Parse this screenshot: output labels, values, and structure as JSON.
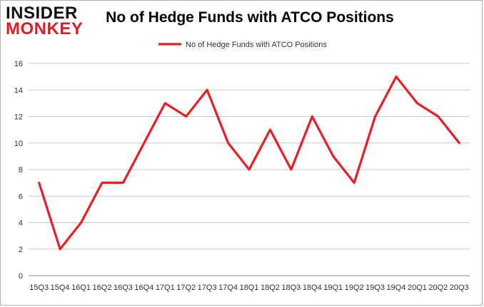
{
  "logo": {
    "line1": "INSIDER",
    "line2": "MONKEY"
  },
  "chart_data": {
    "type": "line",
    "title": "No of Hedge Funds with ATCO Positions",
    "xlabel": "",
    "ylabel": "",
    "ylim": [
      0,
      16
    ],
    "yticks": [
      0,
      2,
      4,
      6,
      8,
      10,
      12,
      14,
      16
    ],
    "grid": true,
    "legend_position": "top-center",
    "categories": [
      "15Q3",
      "15Q4",
      "16Q1",
      "16Q2",
      "16Q3",
      "16Q4",
      "17Q1",
      "17Q2",
      "17Q3",
      "17Q4",
      "18Q1",
      "18Q2",
      "18Q3",
      "18Q4",
      "19Q1",
      "19Q2",
      "19Q3",
      "19Q4",
      "20Q1",
      "20Q2",
      "20Q3"
    ],
    "series": [
      {
        "name": "No of Hedge Funds with ATCO Positions",
        "color": "#ee1c25",
        "values": [
          7,
          2,
          4,
          7,
          7,
          10,
          13,
          12,
          14,
          10,
          8,
          11,
          8,
          12,
          9,
          7,
          12,
          15,
          13,
          12,
          10
        ]
      }
    ]
  }
}
